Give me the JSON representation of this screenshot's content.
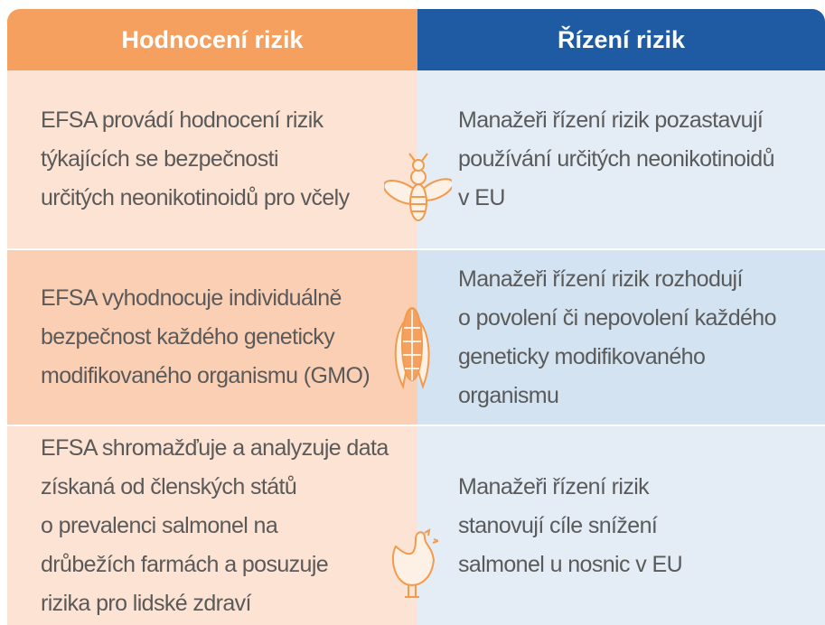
{
  "table": {
    "header": [
      "Hodnocení rizik",
      "Řízení rizik"
    ],
    "rows": [
      [
        [
          "EFSA provádí hodnocení rizik",
          "týkajících se bezpečnosti",
          "určitých neonikotinoidů pro včely"
        ],
        [
          "Manažeři řízení rizik pozastavují",
          "používání určitých neonikotinoidů",
          "v EU"
        ]
      ],
      [
        [
          "EFSA vyhodnocuje individuálně",
          "bezpečnost každého geneticky",
          "modifikovaného organismu (GMO)"
        ],
        [
          "Manažeři řízení rizik rozhodují",
          "o povolení či nepovolení každého",
          "geneticky modifikovaného",
          "organismu"
        ]
      ],
      [
        [
          "EFSA shromažďuje a analyzuje data",
          "získaná od členských států",
          "o prevalenci salmonel na",
          "drůbežích farmách a posuzuje",
          "rizika pro lidské zdraví"
        ],
        [
          "Manažeři řízení rizik",
          "stanovují cíle snížení",
          "salmonel u nosnic v EU"
        ]
      ]
    ]
  }
}
